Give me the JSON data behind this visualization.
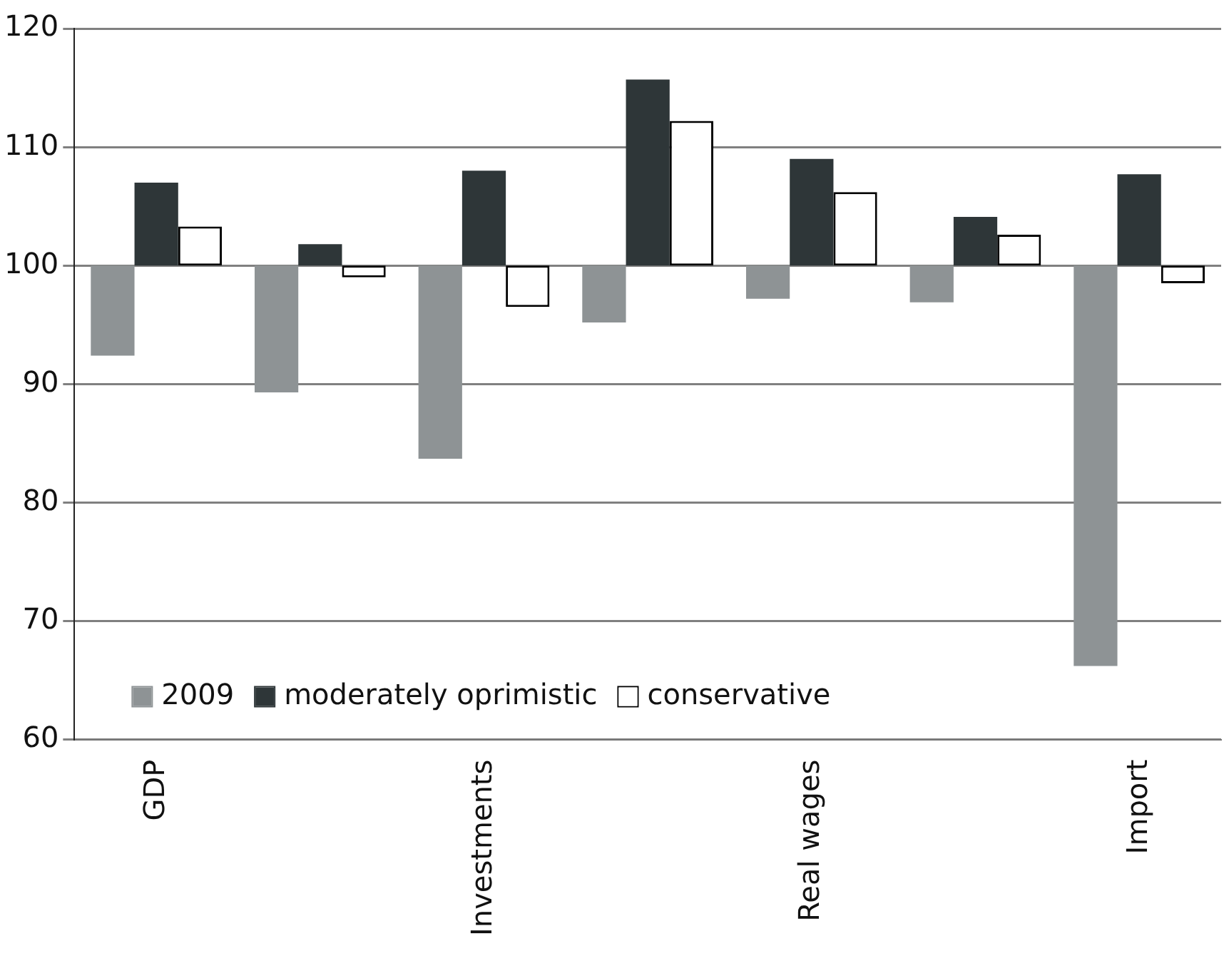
{
  "chart_data": {
    "type": "bar",
    "categories": [
      "GDP",
      null,
      "Investments",
      null,
      "Real wages",
      null,
      "Import"
    ],
    "series": [
      {
        "name": "2009",
        "color": "#8e9395",
        "base": [
          100,
          100,
          100,
          100,
          100,
          100,
          100
        ],
        "values": [
          -7.6,
          -10.7,
          -16.3,
          -4.8,
          -2.8,
          -3.1,
          -33.8
        ]
      },
      {
        "name": "moderately oprimistic",
        "color": "#2e3638",
        "base": [
          100,
          100,
          100,
          100,
          100,
          100,
          100
        ],
        "values": [
          7.0,
          1.8,
          8.0,
          15.7,
          9.0,
          4.1,
          7.7
        ]
      },
      {
        "name": "conservative",
        "color": "#ffffff",
        "base": [
          100,
          100,
          100,
          100,
          100,
          100,
          100
        ],
        "values": [
          3.3,
          -1.0,
          -3.5,
          12.2,
          6.2,
          2.6,
          -1.5
        ]
      }
    ],
    "ylim": [
      60,
      120
    ],
    "yticks": [
      60,
      70,
      80,
      90,
      100,
      110,
      120
    ],
    "grid": "y",
    "legend": "bottom left"
  }
}
